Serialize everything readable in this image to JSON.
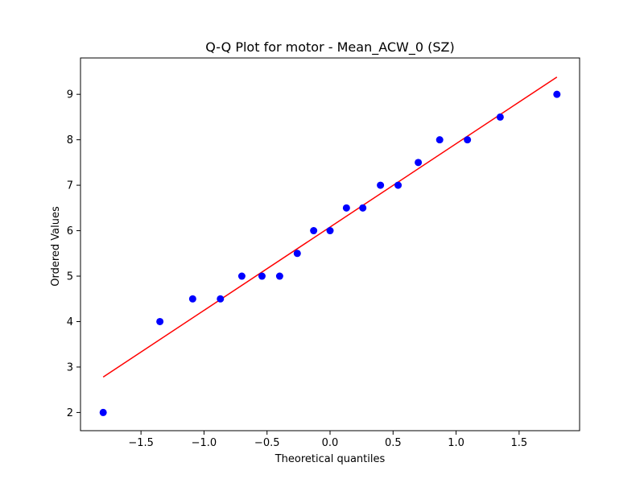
{
  "chart_data": {
    "type": "scatter",
    "title": "Q-Q Plot for motor - Mean_ACW_0 (SZ)",
    "xlabel": "Theoretical quantiles",
    "ylabel": "Ordered Values",
    "xlim": [
      -1.98,
      1.98
    ],
    "ylim": [
      1.6,
      9.8
    ],
    "xticks": [
      -1.5,
      -1.0,
      -0.5,
      0.0,
      0.5,
      1.0,
      1.5
    ],
    "xtick_labels": [
      "−1.5",
      "−1.0",
      "−0.5",
      "0.0",
      "0.5",
      "1.0",
      "1.5"
    ],
    "yticks": [
      2,
      3,
      4,
      5,
      6,
      7,
      8,
      9
    ],
    "ytick_labels": [
      "2",
      "3",
      "4",
      "5",
      "6",
      "7",
      "8",
      "9"
    ],
    "grid": false,
    "points": {
      "color": "#0000ff",
      "x": [
        -1.8,
        -1.35,
        -1.09,
        -0.87,
        -0.7,
        -0.54,
        -0.4,
        -0.26,
        -0.13,
        0.0,
        0.13,
        0.26,
        0.4,
        0.54,
        0.7,
        0.87,
        1.09,
        1.35,
        1.8
      ],
      "y": [
        2.0,
        4.0,
        4.5,
        4.5,
        5.0,
        5.0,
        5.0,
        5.5,
        6.0,
        6.0,
        6.5,
        6.5,
        7.0,
        7.0,
        7.5,
        8.0,
        8.0,
        8.5,
        9.0
      ]
    },
    "fit_line": {
      "color": "#ff0000",
      "x": [
        -1.8,
        1.8
      ],
      "y": [
        2.78,
        9.38
      ]
    }
  }
}
